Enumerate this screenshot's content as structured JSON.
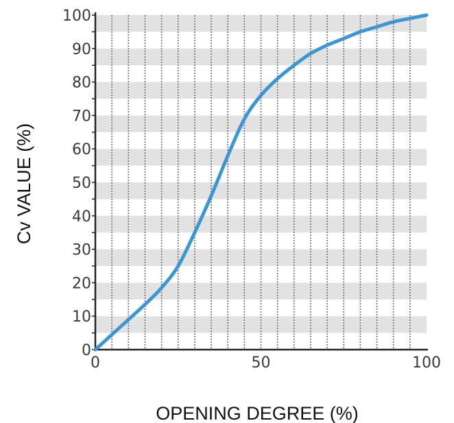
{
  "chart_data": {
    "type": "line",
    "title": "",
    "xlabel": "OPENING DEGREE (%)",
    "ylabel": "Cv VALUE (%)",
    "xlim": [
      0,
      100
    ],
    "ylim": [
      0,
      100
    ],
    "x_ticks": [
      0,
      50,
      100
    ],
    "y_ticks": [
      0,
      10,
      20,
      30,
      40,
      50,
      60,
      70,
      80,
      90,
      100
    ],
    "x_tick_labels": [
      "0",
      "50",
      "100"
    ],
    "y_tick_labels": [
      "0",
      "10",
      "20",
      "30",
      "40",
      "50",
      "60",
      "70",
      "80",
      "90",
      "100"
    ],
    "grid": true,
    "legend": "none",
    "series": [
      {
        "x": [
          0,
          5,
          10,
          15,
          20,
          25,
          30,
          35,
          40,
          45,
          50,
          55,
          60,
          65,
          70,
          75,
          80,
          85,
          90,
          95,
          100
        ],
        "y": [
          0,
          4.5,
          9,
          13.5,
          18.5,
          25,
          35,
          46,
          58,
          69,
          76,
          81,
          85,
          88.5,
          91,
          93,
          95,
          96.5,
          98,
          99,
          100
        ],
        "color": "#3a97d4"
      }
    ],
    "colors": {
      "line": "#3a97d4",
      "band": "#e2e2e2",
      "grid_line": "#6e6e6e",
      "axis": "#222222"
    }
  }
}
